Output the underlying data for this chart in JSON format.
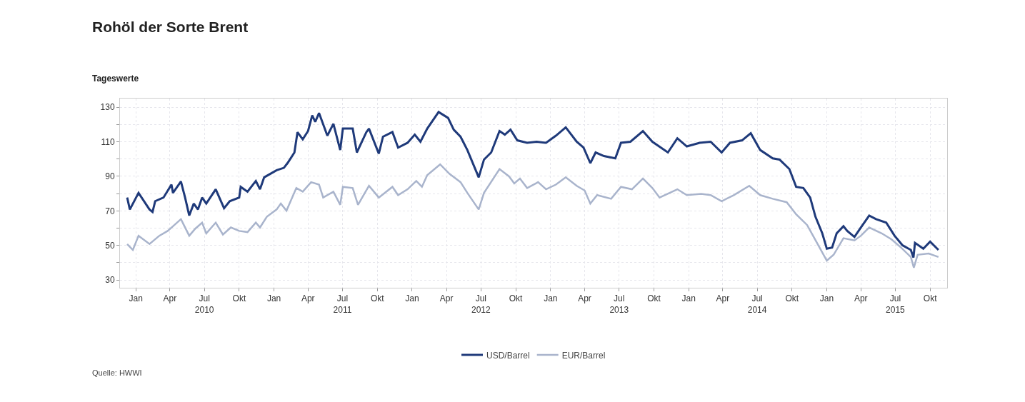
{
  "chart_data": {
    "type": "line",
    "title": "Rohöl der Sorte Brent",
    "subtitle": "Tageswerte",
    "annotations": [
      "Quelle: HWWI"
    ],
    "xlim": [
      "2009-11-20",
      "2015-11-15"
    ],
    "xticks": [
      {
        "value": "2010-01-01",
        "label": "Jan"
      },
      {
        "value": "2010-04-01",
        "label": "Apr"
      },
      {
        "value": "2010-07-01",
        "label": "Jul\n2010"
      },
      {
        "value": "2010-10-01",
        "label": "Okt"
      },
      {
        "value": "2011-01-01",
        "label": "Jan"
      },
      {
        "value": "2011-04-01",
        "label": "Apr"
      },
      {
        "value": "2011-07-01",
        "label": "Jul\n2011"
      },
      {
        "value": "2011-10-01",
        "label": "Okt"
      },
      {
        "value": "2012-01-01",
        "label": "Jan"
      },
      {
        "value": "2012-04-01",
        "label": "Apr"
      },
      {
        "value": "2012-07-01",
        "label": "Jul\n2012"
      },
      {
        "value": "2012-10-01",
        "label": "Okt"
      },
      {
        "value": "2013-01-01",
        "label": "Jan"
      },
      {
        "value": "2013-04-01",
        "label": "Apr"
      },
      {
        "value": "2013-07-01",
        "label": "Jul\n2013"
      },
      {
        "value": "2013-10-01",
        "label": "Okt"
      },
      {
        "value": "2014-01-01",
        "label": "Jan"
      },
      {
        "value": "2014-04-01",
        "label": "Apr"
      },
      {
        "value": "2014-07-01",
        "label": "Jul\n2014"
      },
      {
        "value": "2014-10-01",
        "label": "Okt"
      },
      {
        "value": "2015-01-01",
        "label": "Jan"
      },
      {
        "value": "2015-04-01",
        "label": "Apr"
      },
      {
        "value": "2015-07-01",
        "label": "Jul\n2015"
      },
      {
        "value": "2015-10-01",
        "label": "Okt"
      }
    ],
    "ylim": [
      25.5,
      135
    ],
    "yticks": [
      30,
      {
        "value": 40,
        "label": null
      },
      50,
      {
        "value": 60,
        "label": null
      },
      70,
      {
        "value": 80,
        "label": null
      },
      90,
      {
        "value": 100,
        "label": null
      },
      110,
      {
        "value": 120,
        "label": null
      },
      130
    ],
    "grid": true,
    "legend": "bottom",
    "marker": "none",
    "line_style": "solid",
    "series": [
      {
        "name": "USD/Barrel",
        "color": "#1f3a7a",
        "x": [
          "2009-12-09",
          "2009-12-16",
          "2010-01-08",
          "2010-02-06",
          "2010-02-14",
          "2010-02-21",
          "2010-03-15",
          "2010-04-05",
          "2010-04-09",
          "2010-04-30",
          "2010-05-11",
          "2010-05-22",
          "2010-06-03",
          "2010-06-14",
          "2010-06-25",
          "2010-07-06",
          "2010-07-31",
          "2010-08-22",
          "2010-09-06",
          "2010-10-01",
          "2010-10-05",
          "2010-10-23",
          "2010-11-14",
          "2010-11-25",
          "2010-12-06",
          "2011-01-08",
          "2011-01-27",
          "2011-02-06",
          "2011-02-24",
          "2011-03-04",
          "2011-03-18",
          "2011-04-01",
          "2011-04-12",
          "2011-04-20",
          "2011-04-30",
          "2011-05-22",
          "2011-06-07",
          "2011-06-25",
          "2011-07-02",
          "2011-07-28",
          "2011-08-08",
          "2011-09-02",
          "2011-09-09",
          "2011-10-05",
          "2011-10-16",
          "2011-11-10",
          "2011-11-25",
          "2011-12-20",
          "2012-01-08",
          "2012-01-23",
          "2012-02-10",
          "2012-03-11",
          "2012-04-05",
          "2012-04-20",
          "2012-05-08",
          "2012-05-26",
          "2012-06-25",
          "2012-07-09",
          "2012-07-28",
          "2012-08-19",
          "2012-09-02",
          "2012-09-17",
          "2012-10-05",
          "2012-10-31",
          "2012-11-25",
          "2012-12-20",
          "2013-01-15",
          "2013-02-10",
          "2013-03-11",
          "2013-03-29",
          "2013-04-16",
          "2013-04-30",
          "2013-05-22",
          "2013-06-21",
          "2013-07-06",
          "2013-07-31",
          "2013-09-02",
          "2013-09-27",
          "2013-11-07",
          "2013-12-02",
          "2013-12-27",
          "2014-01-30",
          "2014-02-28",
          "2014-03-29",
          "2014-04-20",
          "2014-05-22",
          "2014-06-14",
          "2014-07-09",
          "2014-08-11",
          "2014-08-29",
          "2014-09-24",
          "2014-10-12",
          "2014-10-31",
          "2014-11-18",
          "2014-12-02",
          "2014-12-20",
          "2015-01-01",
          "2015-01-15",
          "2015-01-27",
          "2015-02-14",
          "2015-02-24",
          "2015-03-15",
          "2015-04-01",
          "2015-04-23",
          "2015-05-11",
          "2015-06-07",
          "2015-06-29",
          "2015-07-20",
          "2015-08-11",
          "2015-08-18",
          "2015-08-22",
          "2015-09-13",
          "2015-10-01",
          "2015-10-23"
        ],
        "values": [
          77.7,
          70.8,
          80.4,
          70.8,
          69.4,
          75.6,
          77.7,
          85.2,
          80.4,
          87,
          77.7,
          67.3,
          74.2,
          70.8,
          77.7,
          74.2,
          82.5,
          71.5,
          75.6,
          77.7,
          83.9,
          81.1,
          87.3,
          82.5,
          89.4,
          93.5,
          94.9,
          97.7,
          103.8,
          115.5,
          111.4,
          116.2,
          125.2,
          121.5,
          126.6,
          113.5,
          120.4,
          105.2,
          117.6,
          117.6,
          103.8,
          115.5,
          117.6,
          103.1,
          112.9,
          115.6,
          106.6,
          109.4,
          114.1,
          110,
          117.6,
          127.2,
          123.8,
          117,
          112.9,
          105.2,
          89.4,
          99.7,
          103.8,
          116.2,
          114.1,
          117,
          110.8,
          109.4,
          110,
          109.4,
          113.5,
          118.3,
          110,
          106.6,
          97.6,
          103.8,
          101.7,
          100.4,
          109.4,
          110,
          116.2,
          110,
          103.8,
          112,
          107.3,
          109.4,
          110,
          103.8,
          109.4,
          110.8,
          114.9,
          105.2,
          100.4,
          99.7,
          94.2,
          83.9,
          83.2,
          77.7,
          66.6,
          57,
          48.1,
          48.8,
          57,
          61.1,
          58.4,
          54.9,
          60.4,
          67.3,
          65.2,
          63.2,
          55.6,
          50.1,
          47.4,
          43,
          51.5,
          48.1,
          52.2,
          47.4
        ]
      },
      {
        "name": "EUR/Barrel",
        "color": "#a9b4cc",
        "x": [
          "2009-12-09",
          "2009-12-24",
          "2010-01-08",
          "2010-02-06",
          "2010-03-04",
          "2010-03-26",
          "2010-04-09",
          "2010-04-30",
          "2010-05-22",
          "2010-06-07",
          "2010-06-25",
          "2010-07-06",
          "2010-07-31",
          "2010-08-19",
          "2010-09-09",
          "2010-10-01",
          "2010-10-23",
          "2010-11-14",
          "2010-11-25",
          "2010-12-13",
          "2011-01-08",
          "2011-01-19",
          "2011-02-03",
          "2011-03-01",
          "2011-03-18",
          "2011-04-09",
          "2011-04-30",
          "2011-05-11",
          "2011-06-07",
          "2011-06-25",
          "2011-07-02",
          "2011-07-28",
          "2011-08-11",
          "2011-09-09",
          "2011-10-05",
          "2011-11-10",
          "2011-11-25",
          "2011-12-20",
          "2012-01-12",
          "2012-01-27",
          "2012-02-10",
          "2012-03-15",
          "2012-04-09",
          "2012-05-08",
          "2012-05-26",
          "2012-06-25",
          "2012-07-09",
          "2012-08-19",
          "2012-09-13",
          "2012-09-27",
          "2012-10-12",
          "2012-10-31",
          "2012-11-29",
          "2012-12-20",
          "2013-01-15",
          "2013-02-10",
          "2013-03-11",
          "2013-04-01",
          "2013-04-16",
          "2013-05-04",
          "2013-06-10",
          "2013-07-06",
          "2013-08-04",
          "2013-09-02",
          "2013-09-27",
          "2013-10-16",
          "2013-12-02",
          "2013-12-27",
          "2014-02-03",
          "2014-02-28",
          "2014-03-29",
          "2014-04-30",
          "2014-06-10",
          "2014-07-09",
          "2014-08-11",
          "2014-09-17",
          "2014-10-12",
          "2014-11-10",
          "2014-12-06",
          "2015-01-01",
          "2015-01-19",
          "2015-02-14",
          "2015-03-15",
          "2015-04-01",
          "2015-04-23",
          "2015-05-26",
          "2015-06-21",
          "2015-07-16",
          "2015-08-11",
          "2015-08-19",
          "2015-08-29",
          "2015-09-27",
          "2015-10-23"
        ],
        "values": [
          50.8,
          47.4,
          55.6,
          50.8,
          55.6,
          58.4,
          61.1,
          65.2,
          55.6,
          59.7,
          63.2,
          57,
          63.2,
          56.3,
          60.4,
          58.4,
          57.7,
          63.2,
          60.4,
          66.6,
          70.8,
          74.2,
          70.1,
          83.2,
          81.1,
          86.6,
          85.2,
          77.7,
          81.1,
          73.5,
          83.9,
          83.2,
          73.5,
          84.5,
          77.7,
          83.9,
          79.1,
          82.5,
          87.3,
          83.9,
          90.7,
          96.9,
          91.4,
          86.6,
          80.4,
          70.8,
          80.4,
          94.2,
          90,
          85.9,
          88.7,
          83.2,
          86.6,
          82.5,
          85.2,
          89.4,
          84.5,
          81.8,
          74.2,
          79.1,
          77,
          83.9,
          82.5,
          88.7,
          83.2,
          77.7,
          82.5,
          79.1,
          79.8,
          79.1,
          75.6,
          79.1,
          84.5,
          79.1,
          77,
          75,
          68,
          61.8,
          51.5,
          41.2,
          44.6,
          54.2,
          52.9,
          55.6,
          60.4,
          57,
          53.5,
          48.8,
          43.3,
          37.1,
          44.6,
          45.3,
          43.3
        ]
      }
    ]
  }
}
